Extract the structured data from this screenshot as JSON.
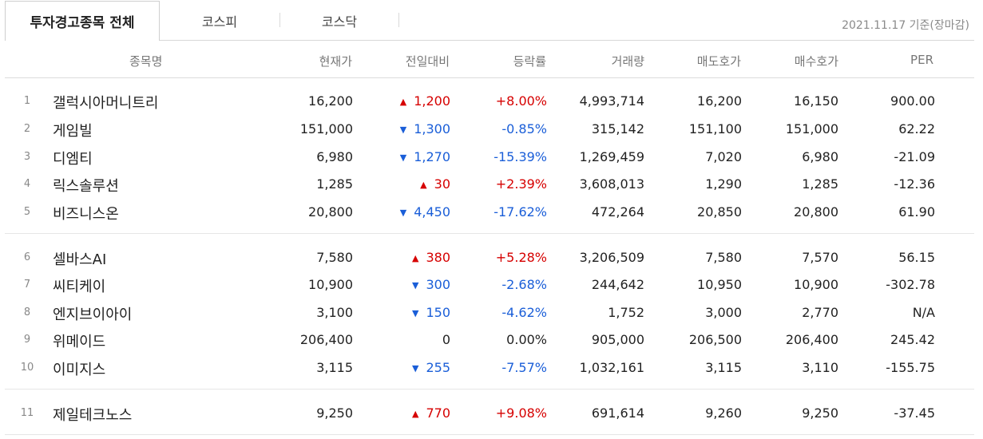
{
  "tabs": {
    "active": "투자경고종목 전체",
    "kospi": "코스피",
    "kosdaq": "코스닥"
  },
  "date_label": "2021.11.17 기준(장마감)",
  "columns": {
    "name": "종목명",
    "price": "현재가",
    "change": "전일대비",
    "rate": "등락률",
    "volume": "거래량",
    "ask": "매도호가",
    "bid": "매수호가",
    "per": "PER"
  },
  "rows": [
    {
      "num": "1",
      "name": "갤럭시아머니트리",
      "price": "16,200",
      "dir": "up",
      "arrow": "▲",
      "change": "1,200",
      "rate": "+8.00%",
      "volume": "4,993,714",
      "ask": "16,200",
      "bid": "16,150",
      "per": "900.00"
    },
    {
      "num": "2",
      "name": "게임빌",
      "price": "151,000",
      "dir": "down",
      "arrow": "▼",
      "change": "1,300",
      "rate": "-0.85%",
      "volume": "315,142",
      "ask": "151,100",
      "bid": "151,000",
      "per": "62.22"
    },
    {
      "num": "3",
      "name": "디엠티",
      "price": "6,980",
      "dir": "down",
      "arrow": "▼",
      "change": "1,270",
      "rate": "-15.39%",
      "volume": "1,269,459",
      "ask": "7,020",
      "bid": "6,980",
      "per": "-21.09"
    },
    {
      "num": "4",
      "name": "릭스솔루션",
      "price": "1,285",
      "dir": "up",
      "arrow": "▲",
      "change": "30",
      "rate": "+2.39%",
      "volume": "3,608,013",
      "ask": "1,290",
      "bid": "1,285",
      "per": "-12.36"
    },
    {
      "num": "5",
      "name": "비즈니스온",
      "price": "20,800",
      "dir": "down",
      "arrow": "▼",
      "change": "4,450",
      "rate": "-17.62%",
      "volume": "472,264",
      "ask": "20,850",
      "bid": "20,800",
      "per": "61.90"
    },
    {
      "num": "6",
      "name": "셀바스AI",
      "price": "7,580",
      "dir": "up",
      "arrow": "▲",
      "change": "380",
      "rate": "+5.28%",
      "volume": "3,206,509",
      "ask": "7,580",
      "bid": "7,570",
      "per": "56.15"
    },
    {
      "num": "7",
      "name": "씨티케이",
      "price": "10,900",
      "dir": "down",
      "arrow": "▼",
      "change": "300",
      "rate": "-2.68%",
      "volume": "244,642",
      "ask": "10,950",
      "bid": "10,900",
      "per": "-302.78"
    },
    {
      "num": "8",
      "name": "엔지브이아이",
      "price": "3,100",
      "dir": "down",
      "arrow": "▼",
      "change": "150",
      "rate": "-4.62%",
      "volume": "1,752",
      "ask": "3,000",
      "bid": "2,770",
      "per": "N/A"
    },
    {
      "num": "9",
      "name": "위메이드",
      "price": "206,400",
      "dir": "flat",
      "arrow": "",
      "change": "0",
      "rate": "0.00%",
      "volume": "905,000",
      "ask": "206,500",
      "bid": "206,400",
      "per": "245.42"
    },
    {
      "num": "10",
      "name": "이미지스",
      "price": "3,115",
      "dir": "down",
      "arrow": "▼",
      "change": "255",
      "rate": "-7.57%",
      "volume": "1,032,161",
      "ask": "3,115",
      "bid": "3,110",
      "per": "-155.75"
    },
    {
      "num": "11",
      "name": "제일테크노스",
      "price": "9,250",
      "dir": "up",
      "arrow": "▲",
      "change": "770",
      "rate": "+9.08%",
      "volume": "691,614",
      "ask": "9,260",
      "bid": "9,250",
      "per": "-37.45"
    }
  ],
  "colors": {
    "up": "#d60000",
    "down": "#1a5ed8"
  }
}
